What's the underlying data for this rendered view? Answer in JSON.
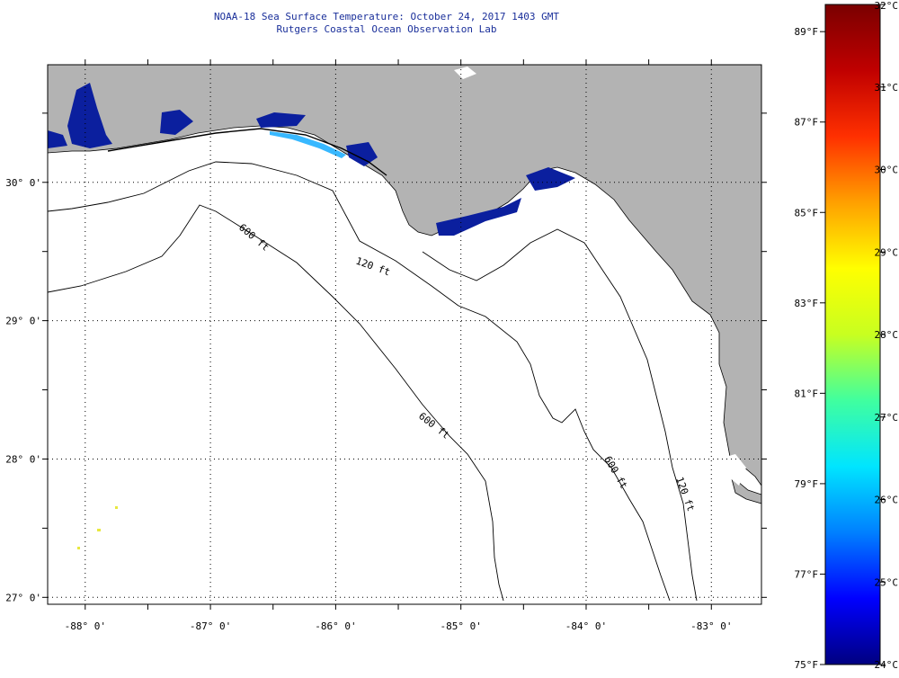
{
  "title": "NOAA-18 Sea Surface Temperature:  October 24, 2017 1403 GMT",
  "subtitle": "Rutgers Coastal Ocean Observation Lab",
  "map": {
    "lon_range": [
      -88.3,
      -82.6
    ],
    "lat_range": [
      26.95,
      30.85
    ],
    "lon_ticks": [
      {
        "value": -88,
        "label": "-88° 0'"
      },
      {
        "value": -87,
        "label": "-87° 0'"
      },
      {
        "value": -86,
        "label": "-86° 0'"
      },
      {
        "value": -85,
        "label": "-85° 0'"
      },
      {
        "value": -84,
        "label": "-84° 0'"
      },
      {
        "value": -83,
        "label": "-83° 0'"
      }
    ],
    "lat_ticks": [
      {
        "value": 30,
        "label": "30° 0'"
      },
      {
        "value": 29,
        "label": "29° 0'"
      },
      {
        "value": 28,
        "label": "28° 0'"
      },
      {
        "value": 27,
        "label": "27° 0'"
      }
    ],
    "contours": [
      {
        "label": "120 ft"
      },
      {
        "label": "600 ft"
      },
      {
        "label": "600 ft"
      },
      {
        "label": "600 ft"
      },
      {
        "label": "120 ft"
      }
    ],
    "colors": {
      "land": "#b3b3b3",
      "ocean": "#ffffff",
      "cold_patch": "#0b1f9e"
    }
  },
  "colorbar": {
    "celsius_labels": [
      "32°C",
      "31°C",
      "30°C",
      "29°C",
      "28°C",
      "27°C",
      "26°C",
      "25°C",
      "24°C"
    ],
    "fahrenheit_labels": [
      "89°F",
      "87°F",
      "85°F",
      "83°F",
      "81°F",
      "79°F",
      "77°F",
      "75°F"
    ],
    "celsius_range": [
      24,
      32
    ],
    "fahrenheit_range": [
      75,
      89.6
    ],
    "stops": [
      "#000080",
      "#0000ff",
      "#0080ff",
      "#00e5ff",
      "#40ff9f",
      "#c8ff20",
      "#ffff00",
      "#ffa000",
      "#ff3000",
      "#c00000",
      "#7a0000"
    ]
  }
}
